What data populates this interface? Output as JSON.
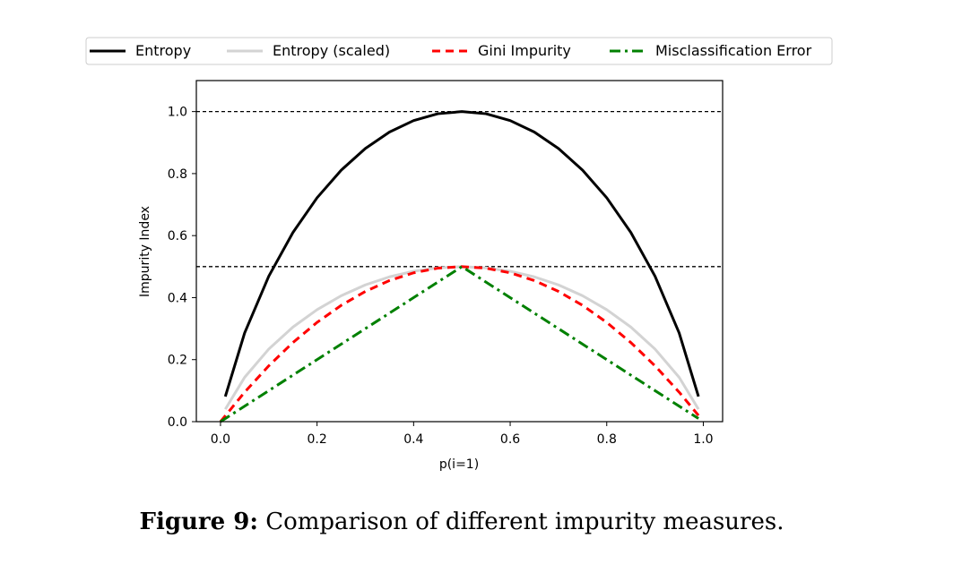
{
  "caption": {
    "label": "Figure 9:",
    "text": "Comparison of different impurity measures."
  },
  "chart_data": {
    "type": "line",
    "title": "",
    "xlabel": "p(i=1)",
    "ylabel": "Impurity Index",
    "xlim": [
      -0.05,
      1.04
    ],
    "ylim": [
      0.0,
      1.1
    ],
    "xticks": [
      0.0,
      0.2,
      0.4,
      0.6,
      0.8,
      1.0
    ],
    "xtick_labels": [
      "0.0",
      "0.2",
      "0.4",
      "0.6",
      "0.8",
      "1.0"
    ],
    "yticks": [
      0.0,
      0.2,
      0.4,
      0.6,
      0.8,
      1.0
    ],
    "ytick_labels": [
      "0.0",
      "0.2",
      "0.4",
      "0.6",
      "0.8",
      "1.0"
    ],
    "grid": false,
    "legend_position": "top-center",
    "hlines": [
      {
        "y": 1.0,
        "style": "dashed",
        "color": "#000000"
      },
      {
        "y": 0.5,
        "style": "dashed",
        "color": "#000000"
      }
    ],
    "x": [
      0.01,
      0.05,
      0.1,
      0.15,
      0.2,
      0.25,
      0.3,
      0.35,
      0.4,
      0.45,
      0.5,
      0.55,
      0.6,
      0.65,
      0.7,
      0.75,
      0.8,
      0.85,
      0.9,
      0.95,
      0.99
    ],
    "series": [
      {
        "name": "Entropy",
        "color": "#000000",
        "style": "solid",
        "x": [
          0.01,
          0.05,
          0.1,
          0.15,
          0.2,
          0.25,
          0.3,
          0.35,
          0.4,
          0.45,
          0.5,
          0.55,
          0.6,
          0.65,
          0.7,
          0.75,
          0.8,
          0.85,
          0.9,
          0.95,
          0.99
        ],
        "values": [
          0.081,
          0.286,
          0.469,
          0.61,
          0.722,
          0.811,
          0.881,
          0.934,
          0.971,
          0.993,
          1.0,
          0.993,
          0.971,
          0.934,
          0.881,
          0.811,
          0.722,
          0.61,
          0.469,
          0.286,
          0.081
        ]
      },
      {
        "name": "Entropy (scaled)",
        "color": "#d3d3d3",
        "style": "solid",
        "x": [
          0.01,
          0.05,
          0.1,
          0.15,
          0.2,
          0.25,
          0.3,
          0.35,
          0.4,
          0.45,
          0.5,
          0.55,
          0.6,
          0.65,
          0.7,
          0.75,
          0.8,
          0.85,
          0.9,
          0.95,
          0.99
        ],
        "values": [
          0.04,
          0.143,
          0.234,
          0.305,
          0.361,
          0.406,
          0.441,
          0.467,
          0.485,
          0.496,
          0.5,
          0.496,
          0.485,
          0.467,
          0.441,
          0.406,
          0.361,
          0.305,
          0.234,
          0.143,
          0.04
        ]
      },
      {
        "name": "Gini Impurity",
        "color": "#ff0000",
        "style": "dashed",
        "x": [
          0.0,
          0.05,
          0.1,
          0.15,
          0.2,
          0.25,
          0.3,
          0.35,
          0.4,
          0.45,
          0.5,
          0.55,
          0.6,
          0.65,
          0.7,
          0.75,
          0.8,
          0.85,
          0.9,
          0.95,
          0.99
        ],
        "values": [
          0.0,
          0.095,
          0.18,
          0.255,
          0.32,
          0.375,
          0.42,
          0.455,
          0.48,
          0.495,
          0.5,
          0.495,
          0.48,
          0.455,
          0.42,
          0.375,
          0.32,
          0.255,
          0.18,
          0.095,
          0.02
        ]
      },
      {
        "name": "Misclassification Error",
        "color": "#008000",
        "style": "dashdot",
        "x": [
          0.0,
          0.5,
          0.99
        ],
        "values": [
          0.0,
          0.5,
          0.01
        ]
      }
    ]
  }
}
